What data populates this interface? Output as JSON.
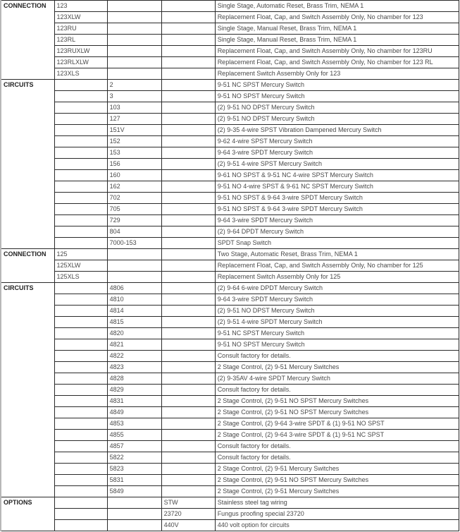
{
  "sections": [
    {
      "label": "CONNECTION",
      "rows": [
        [
          "123",
          "",
          "",
          "Single Stage, Automatic Reset, Brass Trim, NEMA 1"
        ],
        [
          "123XLW",
          "",
          "",
          "Replacement Float, Cap, and Switch Assembly Only, No chamber for 123"
        ],
        [
          "123RU",
          "",
          "",
          "Single Stage, Manual Reset, Brass Trim, NEMA 1"
        ],
        [
          "123RL",
          "",
          "",
          "Single Stage, Manual Reset, Brass Trim, NEMA 1"
        ],
        [
          "123RUXLW",
          "",
          "",
          "Replacement Float, Cap, and Switch Assembly Only, No chamber for 123RU"
        ],
        [
          "123RLXLW",
          "",
          "",
          "Replacement Float, Cap, and Switch Assembly Only, No chamber for 123 RL"
        ],
        [
          "123XLS",
          "",
          "",
          "Replacement Switch Assembly Only for 123"
        ]
      ]
    },
    {
      "label": "CIRCUITS",
      "rows": [
        [
          "",
          "2",
          "",
          "9-51 NC SPST Mercury Switch"
        ],
        [
          "",
          "3",
          "",
          "9-51 NO SPST Mercury Switch"
        ],
        [
          "",
          "103",
          "",
          "(2) 9-51 NO DPST Mercury Switch"
        ],
        [
          "",
          "127",
          "",
          "(2) 9-51 NO DPST Mercury Switch"
        ],
        [
          "",
          "151V",
          "",
          "(2) 9-35 4-wire SPST Vibration Dampened Mercury Switch"
        ],
        [
          "",
          "152",
          "",
          "9-62 4-wire SPST Mercury Switch"
        ],
        [
          "",
          "153",
          "",
          "9-64 3-wire SPDT Mercury Switch"
        ],
        [
          "",
          "156",
          "",
          "(2) 9-51 4-wire SPST Mercury Switch"
        ],
        [
          "",
          "160",
          "",
          "9-61 NO SPST & 9-51 NC 4-wire SPST Mercury Switch"
        ],
        [
          "",
          "162",
          "",
          "9-51 NO 4-wire SPST & 9-61 NC SPST Mercury Switch"
        ],
        [
          "",
          "702",
          "",
          "9-51 NO SPST & 9-64 3-wire SPDT Mercury Switch"
        ],
        [
          "",
          "705",
          "",
          "9-51 NO SPST & 9-64 3-wire SPDT Mercury Switch"
        ],
        [
          "",
          "729",
          "",
          "9-64 3-wire SPDT Mercury Switch"
        ],
        [
          "",
          "804",
          "",
          "(2) 9-64 DPDT Mercury Switch"
        ],
        [
          "",
          "7000-153",
          "",
          "SPDT Snap Switch"
        ]
      ]
    },
    {
      "label": "CONNECTION",
      "rows": [
        [
          "125",
          "",
          "",
          "Two Stage, Automatic Reset, Brass Trim, NEMA 1"
        ],
        [
          "125XLW",
          "",
          "",
          "Replacement Float, Cap, and Switch Assembly Only, No chamber for 125"
        ],
        [
          "125XLS",
          "",
          "",
          "Replacement Switch Assembly Only for 125"
        ]
      ]
    },
    {
      "label": "CIRCUITS",
      "rows": [
        [
          "",
          "4806",
          "",
          "(2) 9-64 6-wire DPDT Mercury Switch"
        ],
        [
          "",
          "4810",
          "",
          "9-64 3-wire SPDT Mercury Switch"
        ],
        [
          "",
          "4814",
          "",
          "(2) 9-51 NO DPST Mercury Switch"
        ],
        [
          "",
          "4815",
          "",
          "(2) 9-51 4-wire SPDT Mercury Switch"
        ],
        [
          "",
          "4820",
          "",
          "9-51 NC SPST Mercury Switch"
        ],
        [
          "",
          "4821",
          "",
          "9-51 NO SPST Mercury Switch"
        ],
        [
          "",
          "4822",
          "",
          "Consult factory for details."
        ],
        [
          "",
          "4823",
          "",
          "2 Stage Control, (2) 9-51 Mercury Switches"
        ],
        [
          "",
          "4828",
          "",
          "(2) 9-35AV 4-wire SPDT Mercury Switch"
        ],
        [
          "",
          "4829",
          "",
          "Consult factory for details."
        ],
        [
          "",
          "4831",
          "",
          "2 Stage Control, (2) 9-51 NO SPST Mercury Switches"
        ],
        [
          "",
          "4849",
          "",
          "2 Stage Control, (2) 9-51 NO SPST Mercury Switches"
        ],
        [
          "",
          "4853",
          "",
          "2 Stage Control, (2) 9-64 3-wire SPDT & (1) 9-51 NO SPST"
        ],
        [
          "",
          "4855",
          "",
          "2 Stage Control, (2) 9-64 3-wire SPDT & (1) 9-51 NC SPST"
        ],
        [
          "",
          "4857",
          "",
          "Consult factory for details."
        ],
        [
          "",
          "5822",
          "",
          "Consult factory for details."
        ],
        [
          "",
          "5823",
          "",
          "2 Stage Control, (2) 9-51 Mercury Switches"
        ],
        [
          "",
          "5831",
          "",
          "2 Stage Control, (2) 9-51 NO SPST Mercury Switches"
        ],
        [
          "",
          "5849",
          "",
          "2 Stage Control, (2) 9-51 Mercury Switches"
        ]
      ]
    },
    {
      "label": "OPTIONS",
      "rows": [
        [
          "",
          "",
          "STW",
          "Stainless steel tag wiring"
        ],
        [
          "",
          "",
          "23720",
          "Fungus proofing special 23720"
        ],
        [
          "",
          "",
          "440V",
          "440 volt option for circuits"
        ]
      ]
    }
  ]
}
